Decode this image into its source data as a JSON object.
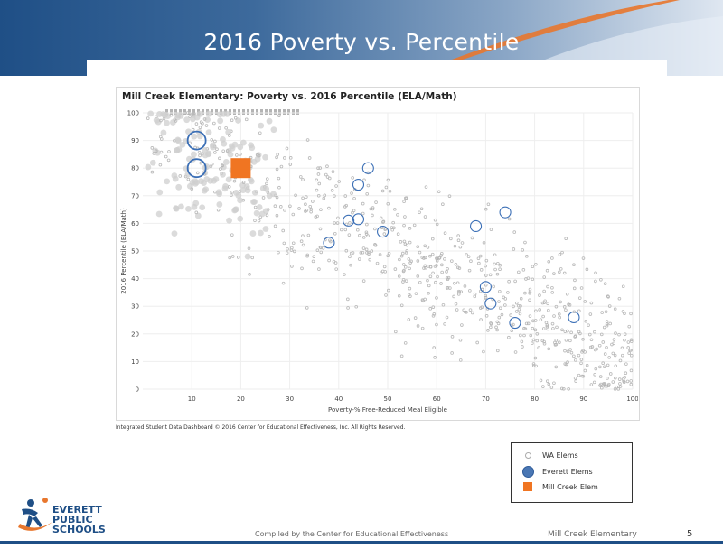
{
  "slide": {
    "title": "2016 Poverty vs. Percentile",
    "footer_credit": "Compiled by the Center for Educational Effectiveness",
    "footer_school": "Mill Creek Elementary",
    "page_number": "5",
    "copyright": "Integrated Student Data Dashboard © 2016 Center for Educational Effectiveness, Inc. All Rights Reserved.",
    "logo_lines": [
      "EVERETT",
      "PUBLIC",
      "SCHOOLS"
    ]
  },
  "colors": {
    "header_blue": "#1f4f86",
    "accent_orange": "#e8772e",
    "wa_gray": "#aaaaaa",
    "everett_blue": "#3b6fb6",
    "millcreek_orange": "#f07522"
  },
  "legend": {
    "wa": "WA Elems",
    "everett": "Everett Elems",
    "millcreek": "Mill Creek Elem"
  },
  "chart_data": {
    "type": "scatter",
    "title": "Mill Creek Elementary:  Poverty vs. 2016 Percentile (ELA/Math)",
    "xlabel": "Poverty-% Free-Reduced Meal Eligible",
    "ylabel": "2016 Percentile (ELA/Math)",
    "xlim": [
      0,
      100
    ],
    "ylim": [
      0,
      100
    ],
    "x_ticks": [
      10,
      20,
      30,
      40,
      50,
      60,
      70,
      80,
      90,
      100
    ],
    "y_ticks": [
      0,
      10,
      20,
      30,
      40,
      50,
      60,
      70,
      80,
      90,
      100
    ],
    "grid": true,
    "legend_position": "bottom-right",
    "series": [
      {
        "name": "Everett Elems",
        "points": [
          [
            11,
            90
          ],
          [
            11,
            80
          ],
          [
            46,
            80
          ],
          [
            44,
            74
          ],
          [
            42,
            61
          ],
          [
            44,
            61.5
          ],
          [
            38,
            53
          ],
          [
            49,
            57
          ],
          [
            68,
            59
          ],
          [
            74,
            64
          ],
          [
            70,
            37
          ],
          [
            71,
            31
          ],
          [
            76,
            24
          ],
          [
            88,
            26
          ]
        ]
      },
      {
        "name": "Mill Creek Elem",
        "points": [
          [
            20,
            80
          ]
        ]
      }
    ],
    "wa_elems_note": "approx. 900 gray points, trending from high percentile/low poverty to low percentile/high poverty"
  }
}
